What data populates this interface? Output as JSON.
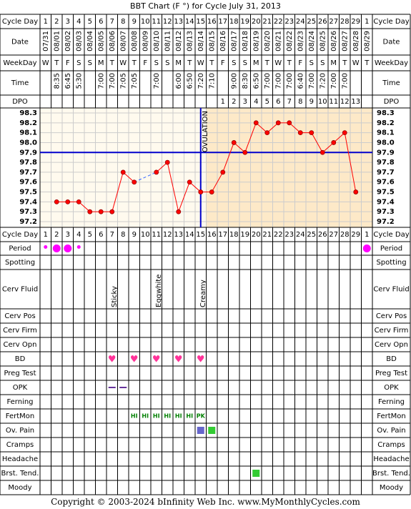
{
  "title": "BBT Chart (F °) for Cycle July 31, 2013",
  "copyright": "Copyright © 2003-2024 bInfinity Web Inc.    www.MyMonthlyCycles.com",
  "colors": {
    "ovulation_line": "#0000cc",
    "coverline": "#0000cc",
    "post_ov_bg": "#fde9c8",
    "pre_ov_bg": "#fffaee",
    "temp_line": "#ff0000",
    "temp_dot": "#ff0000",
    "spot": "#ff00ff",
    "heart": "#ff3399",
    "opk": "#663399",
    "fertmon": "#008000",
    "ov_pain_1": "#6666cc",
    "ov_pain_2": "#33cc33",
    "brst_tend": "#33cc33",
    "border": "#7f007f"
  },
  "row_labels": {
    "cycle_day": "Cycle Day",
    "date": "Date",
    "weekday": "WeekDay",
    "time": "Time",
    "dpo": "DPO",
    "period": "Period",
    "spotting": "Spotting",
    "cerv_fluid": "Cerv Fluid",
    "cerv_pos": "Cerv Pos",
    "cerv_firm": "Cerv Firm",
    "cerv_opn": "Cerv Opn",
    "bd": "BD",
    "preg_test": "Preg Test",
    "opk": "OPK",
    "ferning": "Ferning",
    "fertmon": "FertMon",
    "ov_pain": "Ov. Pain",
    "cramps": "Cramps",
    "headache": "Headache",
    "brst_tend": "Brst. Tend.",
    "moody": "Moody"
  },
  "cycle_days": [
    "1",
    "2",
    "3",
    "4",
    "5",
    "6",
    "7",
    "8",
    "9",
    "10",
    "11",
    "12",
    "13",
    "14",
    "15",
    "16",
    "17",
    "18",
    "19",
    "20",
    "21",
    "22",
    "23",
    "24",
    "25",
    "26",
    "27",
    "28",
    "29",
    "1"
  ],
  "dates": [
    "07/31",
    "08/01",
    "08/02",
    "08/03",
    "08/04",
    "08/05",
    "08/06",
    "08/07",
    "08/08",
    "08/09",
    "08/10",
    "08/11",
    "08/12",
    "08/13",
    "08/14",
    "08/15",
    "08/16",
    "08/17",
    "08/18",
    "08/19",
    "08/20",
    "08/21",
    "08/22",
    "08/23",
    "08/24",
    "08/25",
    "08/26",
    "08/27",
    "08/28",
    "08/29"
  ],
  "weekdays": [
    "W",
    "T",
    "F",
    "S",
    "S",
    "M",
    "T",
    "W",
    "T",
    "F",
    "S",
    "S",
    "M",
    "T",
    "W",
    "T",
    "F",
    "S",
    "S",
    "M",
    "T",
    "W",
    "T",
    "F",
    "S",
    "S",
    "M",
    "T",
    "W",
    "T"
  ],
  "times": [
    "",
    "8:35",
    "6:45",
    "5:30",
    "",
    "7:00",
    "7:00",
    "7:05",
    "7:05",
    "",
    "7:00",
    "",
    "6:00",
    "6:50",
    "7:20",
    "7:10",
    "",
    "9:00",
    "8:30",
    "6:50",
    "7:00",
    "7:00",
    "7:00",
    "6:40",
    "7:00",
    "7:20",
    "7:00",
    "7:00",
    "",
    ""
  ],
  "dpo": [
    "",
    "",
    "",
    "",
    "",
    "",
    "",
    "",
    "",
    "",
    "",
    "",
    "",
    "",
    "",
    "",
    "1",
    "2",
    "3",
    "4",
    "5",
    "6",
    "7",
    "8",
    "9",
    "10",
    "11",
    "12",
    "13",
    ""
  ],
  "ovulation_label": "OVULATION",
  "ovulation_after_day_index": 15,
  "chart_data": {
    "type": "line",
    "title": "BBT Chart (F °) for Cycle July 31, 2013",
    "x": [
      1,
      2,
      3,
      4,
      5,
      6,
      7,
      8,
      9,
      10,
      11,
      12,
      13,
      14,
      15,
      16,
      17,
      18,
      19,
      20,
      21,
      22,
      23,
      24,
      25,
      26,
      27,
      28,
      29,
      30
    ],
    "temps": [
      null,
      97.4,
      97.4,
      97.4,
      97.3,
      97.3,
      97.3,
      97.7,
      97.6,
      null,
      97.7,
      97.8,
      97.3,
      97.6,
      97.5,
      97.5,
      97.7,
      98.0,
      97.9,
      98.2,
      98.1,
      98.2,
      98.2,
      98.1,
      98.1,
      97.9,
      98.0,
      98.1,
      97.5,
      null
    ],
    "dashed_segments": [
      [
        9,
        11
      ]
    ],
    "coverline": 97.9,
    "y_ticks": [
      "98.3",
      "98.2",
      "98.1",
      "98.0",
      "97.9",
      "97.8",
      "97.7",
      "97.6",
      "97.5",
      "97.4",
      "97.3",
      "97.2"
    ],
    "ylim": [
      97.2,
      98.3
    ],
    "grid": true
  },
  "period": [
    {
      "day": 1,
      "size": "small"
    },
    {
      "day": 2,
      "size": "large"
    },
    {
      "day": 3,
      "size": "large"
    },
    {
      "day": 4,
      "size": "small"
    },
    {
      "day": 30,
      "size": "large"
    }
  ],
  "cerv_fluid": [
    {
      "day": 7,
      "text": "Sticky"
    },
    {
      "day": 11,
      "text": "Eggwhite"
    },
    {
      "day": 15,
      "text": "Creamy"
    }
  ],
  "bd_days": [
    7,
    9,
    11,
    13,
    15
  ],
  "opk_days": [
    7,
    8
  ],
  "fertmon": [
    {
      "day": 9,
      "text": "HI"
    },
    {
      "day": 10,
      "text": "HI"
    },
    {
      "day": 11,
      "text": "HI"
    },
    {
      "day": 12,
      "text": "HI"
    },
    {
      "day": 13,
      "text": "HI"
    },
    {
      "day": 14,
      "text": "HI"
    },
    {
      "day": 15,
      "text": "PK"
    }
  ],
  "ov_pain": [
    {
      "day": 15,
      "color": "ov_pain_1"
    },
    {
      "day": 16,
      "color": "ov_pain_2"
    }
  ],
  "brst_tend_days": [
    20
  ]
}
